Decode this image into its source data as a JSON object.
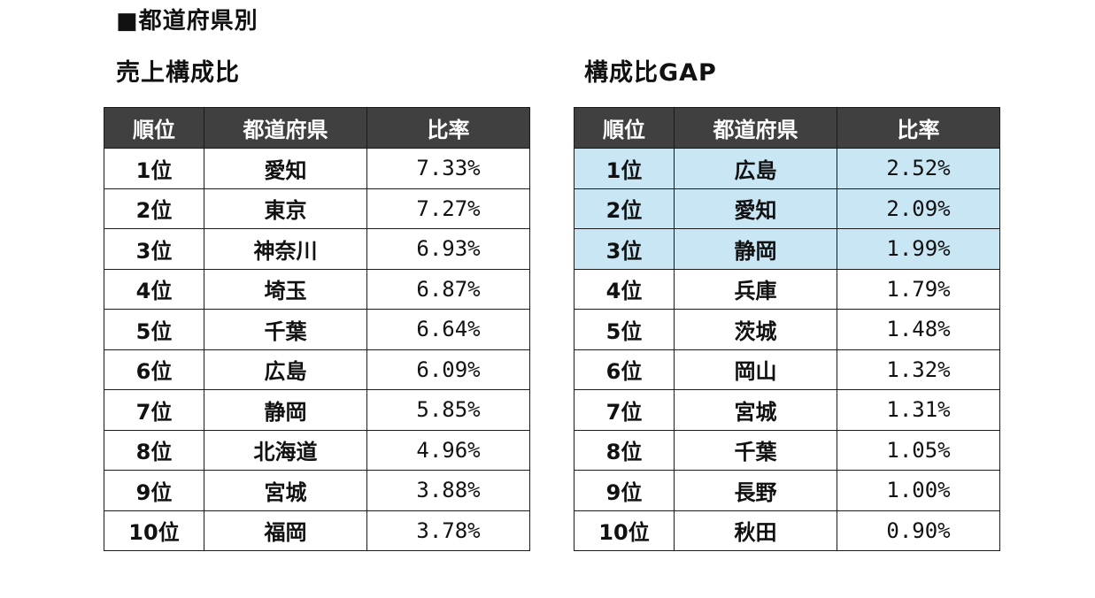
{
  "section_title": "■都道府県別",
  "tables": [
    {
      "title": "売上構成比",
      "headers": [
        "順位",
        "都道府県",
        "比率"
      ],
      "rows": [
        {
          "rank": "1位",
          "pref": "愛知",
          "ratio": "7.33%"
        },
        {
          "rank": "2位",
          "pref": "東京",
          "ratio": "7.27%"
        },
        {
          "rank": "3位",
          "pref": "神奈川",
          "ratio": "6.93%"
        },
        {
          "rank": "4位",
          "pref": "埼玉",
          "ratio": "6.87%"
        },
        {
          "rank": "5位",
          "pref": "千葉",
          "ratio": "6.64%"
        },
        {
          "rank": "6位",
          "pref": "広島",
          "ratio": "6.09%"
        },
        {
          "rank": "7位",
          "pref": "静岡",
          "ratio": "5.85%"
        },
        {
          "rank": "8位",
          "pref": "北海道",
          "ratio": "4.96%"
        },
        {
          "rank": "9位",
          "pref": "宮城",
          "ratio": "3.88%"
        },
        {
          "rank": "10位",
          "pref": "福岡",
          "ratio": "3.78%"
        }
      ]
    },
    {
      "title": "構成比GAP",
      "headers": [
        "順位",
        "都道府県",
        "比率"
      ],
      "highlight_color": "#c9e6f5",
      "highlighted_rows": 3,
      "rows": [
        {
          "rank": "1位",
          "pref": "広島",
          "ratio": "2.52%"
        },
        {
          "rank": "2位",
          "pref": "愛知",
          "ratio": "2.09%"
        },
        {
          "rank": "3位",
          "pref": "静岡",
          "ratio": "1.99%"
        },
        {
          "rank": "4位",
          "pref": "兵庫",
          "ratio": "1.79%"
        },
        {
          "rank": "5位",
          "pref": "茨城",
          "ratio": "1.48%"
        },
        {
          "rank": "6位",
          "pref": "岡山",
          "ratio": "1.32%"
        },
        {
          "rank": "7位",
          "pref": "宮城",
          "ratio": "1.31%"
        },
        {
          "rank": "8位",
          "pref": "千葉",
          "ratio": "1.05%"
        },
        {
          "rank": "9位",
          "pref": "長野",
          "ratio": "1.00%"
        },
        {
          "rank": "10位",
          "pref": "秋田",
          "ratio": "0.90%"
        }
      ]
    }
  ]
}
